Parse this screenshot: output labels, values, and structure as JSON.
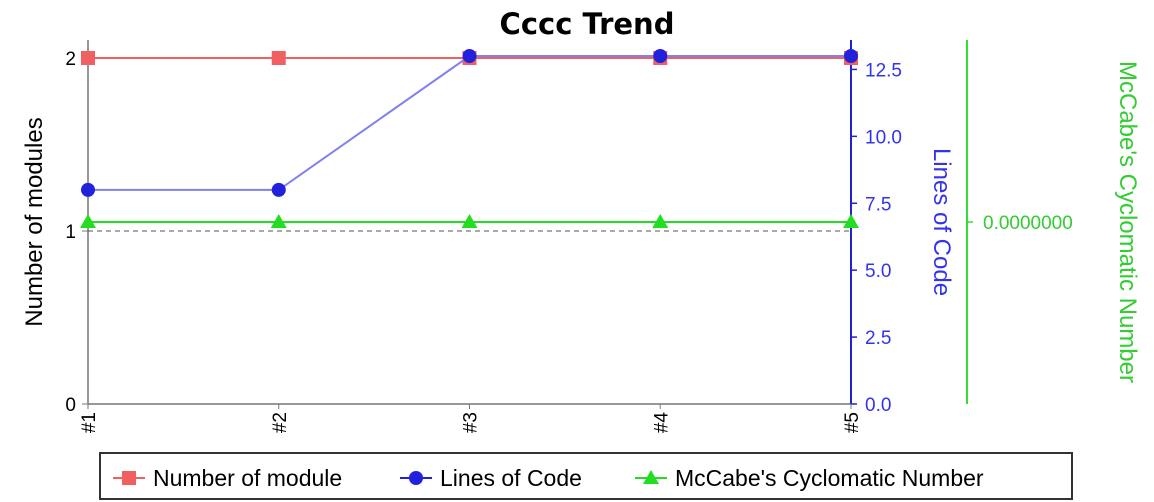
{
  "chart_data": {
    "type": "line",
    "title": "Cccc Trend",
    "categories": [
      "#1",
      "#2",
      "#3",
      "#4",
      "#5"
    ],
    "axes": {
      "left": {
        "label": "Number of modules",
        "range": [
          0,
          2
        ],
        "ticks": [
          "0",
          "1",
          "2"
        ],
        "color": "#000000"
      },
      "right1": {
        "label": "Lines of Code",
        "range": [
          0,
          13.6
        ],
        "ticks": [
          "0.0",
          "2.5",
          "5.0",
          "7.5",
          "10.0",
          "12.5"
        ],
        "tick_values": [
          0,
          2.5,
          5,
          7.5,
          10,
          12.5
        ],
        "color": "#3333ee"
      },
      "right2": {
        "label": "McCabe's Cyclomatic Number",
        "ticks": [
          "0.0000000"
        ],
        "color": "#33cc33"
      }
    },
    "series": [
      {
        "name": "Number of module",
        "axis": "left",
        "color": "#f06060",
        "marker": "square",
        "values": [
          2,
          2,
          2,
          2,
          2
        ]
      },
      {
        "name": "Lines of Code",
        "axis": "right1",
        "color": "#2222dd",
        "line_color": "#8080ee",
        "marker": "circle",
        "values": [
          8,
          8,
          13,
          13,
          13
        ]
      },
      {
        "name": "McCabe's Cyclomatic Number",
        "axis": "right2",
        "color": "#22dd22",
        "marker": "triangle",
        "values": [
          0,
          0,
          0,
          0,
          0
        ]
      }
    ],
    "reference_line": {
      "axis": "left",
      "value": 1,
      "style": "dashed"
    },
    "legend": {
      "placement": "bottom",
      "entries": [
        "Number of module",
        "Lines of Code",
        "McCabe's Cyclomatic Number"
      ]
    }
  }
}
